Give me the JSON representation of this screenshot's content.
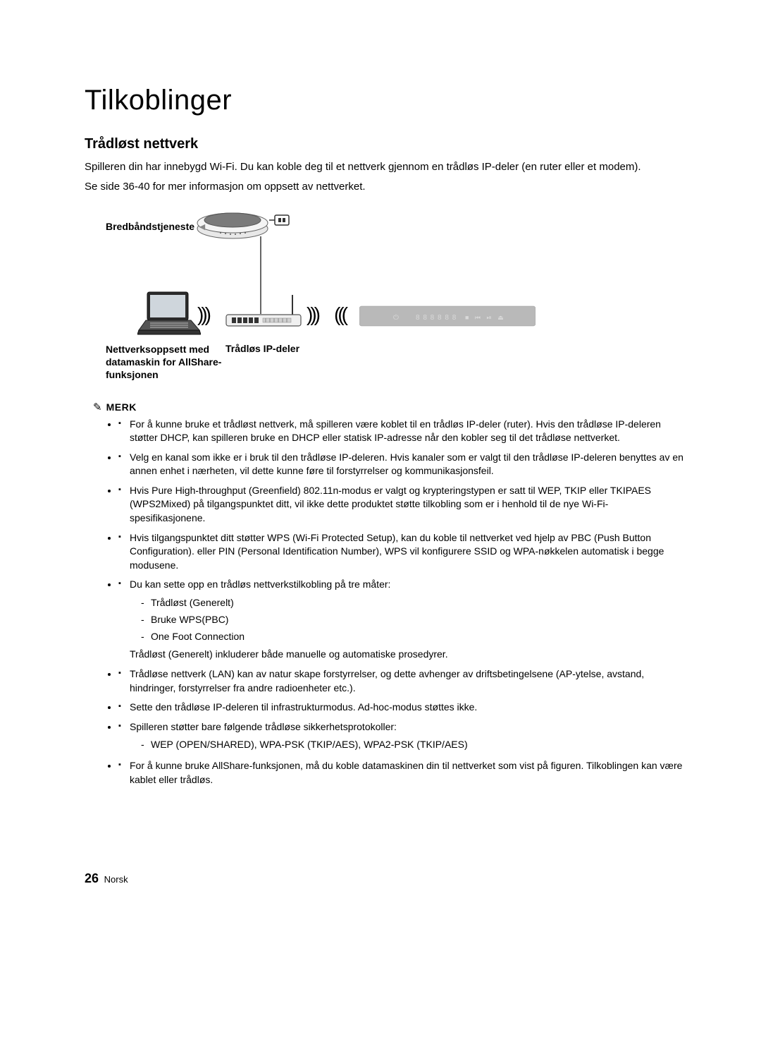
{
  "title": "Tilkoblinger",
  "subtitle": "Trådløst nettverk",
  "intro1": "Spilleren din har innebygd Wi-Fi. Du kan koble deg til et nettverk gjennom en trådløs IP-deler (en ruter eller et modem).",
  "intro2": "Se side 36-40 for mer informasjon om oppsett av nettverket.",
  "diagram": {
    "broadband_label": "Bredbåndstjeneste",
    "network_label": "Nettverksoppsett med datamaskin for AllShare-funksjonen",
    "router_label": "Trådløs IP-deler",
    "player_display": "8 8 8 8 8 8",
    "player_icons": "■  ⏮  ⏯  ⏏",
    "player_power": "⏻",
    "waves_out": ")))",
    "waves_in": ")))"
  },
  "merk_label": "MERK",
  "notes": [
    {
      "text": "For å kunne bruke et trådløst nettverk, må spilleren være koblet til en trådløs IP-deler (ruter). Hvis den trådløse IP-deleren støtter DHCP, kan spilleren bruke en DHCP eller statisk IP-adresse når den kobler seg til det trådløse nettverket."
    },
    {
      "text": "Velg en kanal som ikke er i bruk til den trådløse IP-deleren. Hvis kanaler som er valgt til den trådløse IP-deleren benyttes av en annen enhet i nærheten, vil dette kunne føre til forstyrrelser og kommunikasjonsfeil."
    },
    {
      "text": "Hvis Pure High-throughput (Greenfield) 802.11n-modus er valgt og krypteringstypen er satt til WEP, TKIP eller TKIPAES (WPS2Mixed) på tilgangspunktet ditt, vil ikke dette produktet støtte tilkobling som er i henhold til de nye Wi-Fi-spesifikasjonene."
    },
    {
      "text": "Hvis tilgangspunktet ditt støtter WPS (Wi-Fi Protected Setup), kan du koble til nettverket ved hjelp av PBC (Push Button Configuration). eller PIN (Personal Identification Number), WPS vil konfigurere SSID og WPA-nøkkelen automatisk i begge modusene."
    },
    {
      "text": "Du kan sette opp en trådløs nettverkstilkobling på tre måter:",
      "subs": [
        "Trådløst (Generelt)",
        "Bruke WPS(PBC)",
        "One Foot Connection"
      ],
      "tail": "Trådløst (Generelt) inkluderer både manuelle og automatiske prosedyrer."
    },
    {
      "text": "Trådløse nettverk (LAN) kan av natur skape forstyrrelser, og dette avhenger av driftsbetingelsene (AP-ytelse, avstand, hindringer, forstyrrelser fra andre radioenheter etc.)."
    },
    {
      "text": "Sette den trådløse IP-deleren til infrastrukturmodus. Ad-hoc-modus støttes ikke."
    },
    {
      "text": "Spilleren støtter bare følgende trådløse sikkerhetsprotokoller:",
      "subs": [
        "WEP (OPEN/SHARED), WPA-PSK (TKIP/AES), WPA2-PSK (TKIP/AES)"
      ]
    },
    {
      "text": "For å kunne bruke AllShare-funksjonen, må du koble datamaskinen din til nettverket som vist på figuren. Tilkoblingen kan være kablet eller trådløs."
    }
  ],
  "footer": {
    "page_number": "26",
    "lang": "Norsk"
  },
  "colors": {
    "text": "#000000",
    "player_body": "#b9b9b9",
    "player_icon": "#d9d9d9",
    "modem_body": "#e8e8e8",
    "modem_top": "#7a7a7a",
    "stroke": "#333333"
  }
}
